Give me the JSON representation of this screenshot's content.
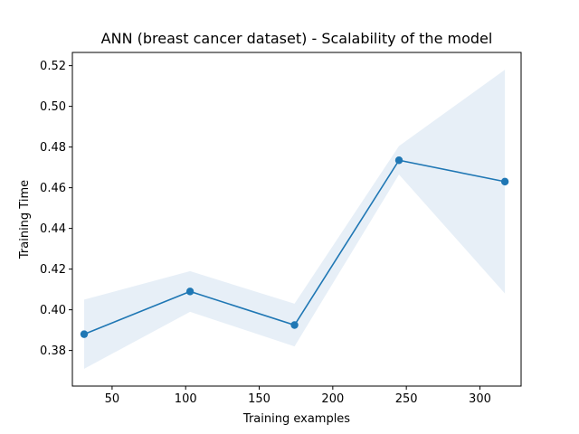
{
  "chart_data": {
    "type": "line",
    "title": "ANN (breast cancer dataset) - Scalability of the model",
    "xlabel": "Training examples",
    "ylabel": "Training Time",
    "xlim": [
      23,
      328
    ],
    "ylim": [
      0.3625,
      0.5265
    ],
    "xticks": [
      50,
      100,
      150,
      200,
      250,
      300
    ],
    "yticks": [
      0.38,
      0.4,
      0.42,
      0.44,
      0.46,
      0.48,
      0.5,
      0.52
    ],
    "ytick_labels": [
      "0.38",
      "0.40",
      "0.42",
      "0.44",
      "0.46",
      "0.48",
      "0.50",
      "0.52"
    ],
    "grid": false,
    "series": [
      {
        "x": [
          31,
          103,
          174,
          245,
          317
        ],
        "values": [
          0.388,
          0.409,
          0.3925,
          0.4735,
          0.463
        ],
        "band_lower": [
          0.371,
          0.399,
          0.382,
          0.4665,
          0.408
        ],
        "band_upper": [
          0.405,
          0.419,
          0.403,
          0.4805,
          0.518
        ],
        "color": "#1f77b4",
        "band_color": "#e7eff7"
      }
    ]
  }
}
